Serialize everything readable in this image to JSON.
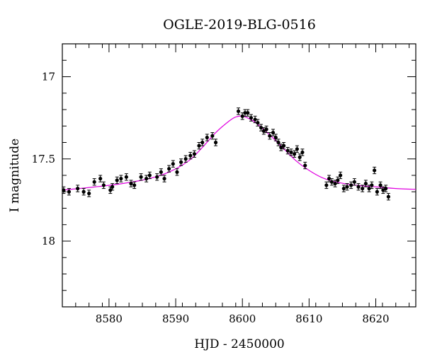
{
  "chart_data": {
    "type": "scatter",
    "title": "OGLE-2019-BLG-0516",
    "xlabel": "HJD - 2450000",
    "ylabel": "I magnitude",
    "xlim": [
      8573,
      8626
    ],
    "ylim": [
      18.4,
      16.8
    ],
    "y_inverted": true,
    "x_ticks": [
      8580,
      8590,
      8600,
      8610,
      8620
    ],
    "y_ticks": [
      17,
      17.5,
      18
    ],
    "grid": false,
    "colors": {
      "points": "#000000",
      "model": "#e000e0"
    },
    "model_curve": {
      "x": [
        8573,
        8578,
        8582,
        8586,
        8589,
        8592,
        8594,
        8596,
        8598,
        8599,
        8600,
        8601,
        8602,
        8604,
        8606,
        8608,
        8610,
        8612,
        8614,
        8617,
        8620,
        8623,
        8626
      ],
      "y": [
        17.69,
        17.67,
        17.65,
        17.62,
        17.58,
        17.51,
        17.43,
        17.34,
        17.27,
        17.245,
        17.24,
        17.255,
        17.28,
        17.35,
        17.43,
        17.51,
        17.57,
        17.615,
        17.64,
        17.66,
        17.67,
        17.68,
        17.685
      ]
    },
    "series": [
      {
        "x": [
          8573.2,
          8574.0,
          8575.3,
          8576.2,
          8577.0,
          8577.8,
          8578.7,
          8579.2,
          8580.2,
          8580.5,
          8581.2,
          8581.8,
          8582.6,
          8583.3,
          8583.8,
          8584.8,
          8585.6,
          8586.1,
          8587.2,
          8587.8,
          8588.3,
          8589.0,
          8589.6,
          8590.2,
          8590.8,
          8591.5,
          8592.2,
          8592.8,
          8593.5,
          8594.0,
          8594.7,
          8595.5,
          8596.0,
          8599.4,
          8600.0,
          8600.4,
          8600.8,
          8601.3,
          8601.9,
          8602.3,
          8602.8,
          8603.2,
          8603.6,
          8604.1,
          8604.6,
          8605.0,
          8605.4,
          8605.8,
          8606.2,
          8606.8,
          8607.3,
          8607.8,
          8608.2,
          8608.6,
          8609.0,
          8609.4,
          8612.6,
          8613.0,
          8613.4,
          8613.9,
          8614.3,
          8614.7,
          8615.2,
          8615.7,
          8616.3,
          8616.8,
          8617.4,
          8618.0,
          8618.5,
          8619.0,
          8619.4,
          8619.8,
          8620.2,
          8620.7,
          8621.1,
          8621.5,
          8621.9
        ],
        "y": [
          17.69,
          17.7,
          17.68,
          17.7,
          17.71,
          17.64,
          17.62,
          17.66,
          17.69,
          17.67,
          17.63,
          17.62,
          17.61,
          17.65,
          17.66,
          17.61,
          17.62,
          17.6,
          17.61,
          17.58,
          17.62,
          17.56,
          17.53,
          17.58,
          17.52,
          17.5,
          17.48,
          17.47,
          17.42,
          17.4,
          17.37,
          17.36,
          17.4,
          17.21,
          17.24,
          17.22,
          17.22,
          17.25,
          17.26,
          17.28,
          17.31,
          17.33,
          17.32,
          17.36,
          17.34,
          17.37,
          17.4,
          17.43,
          17.42,
          17.45,
          17.46,
          17.47,
          17.44,
          17.49,
          17.46,
          17.54,
          17.66,
          17.62,
          17.64,
          17.65,
          17.63,
          17.6,
          17.68,
          17.67,
          17.66,
          17.64,
          17.67,
          17.68,
          17.65,
          17.68,
          17.66,
          17.57,
          17.7,
          17.66,
          17.69,
          17.68,
          17.73
        ],
        "err": [
          0.02,
          0.02,
          0.02,
          0.02,
          0.02,
          0.02,
          0.02,
          0.02,
          0.02,
          0.02,
          0.02,
          0.02,
          0.02,
          0.02,
          0.02,
          0.02,
          0.02,
          0.02,
          0.02,
          0.02,
          0.02,
          0.02,
          0.02,
          0.02,
          0.02,
          0.02,
          0.02,
          0.02,
          0.02,
          0.02,
          0.02,
          0.02,
          0.02,
          0.02,
          0.02,
          0.02,
          0.02,
          0.02,
          0.02,
          0.02,
          0.02,
          0.02,
          0.02,
          0.02,
          0.02,
          0.02,
          0.02,
          0.02,
          0.02,
          0.02,
          0.02,
          0.02,
          0.02,
          0.02,
          0.02,
          0.02,
          0.02,
          0.02,
          0.02,
          0.02,
          0.02,
          0.02,
          0.02,
          0.02,
          0.02,
          0.02,
          0.02,
          0.02,
          0.02,
          0.02,
          0.02,
          0.02,
          0.02,
          0.02,
          0.02,
          0.02,
          0.02
        ]
      }
    ]
  }
}
